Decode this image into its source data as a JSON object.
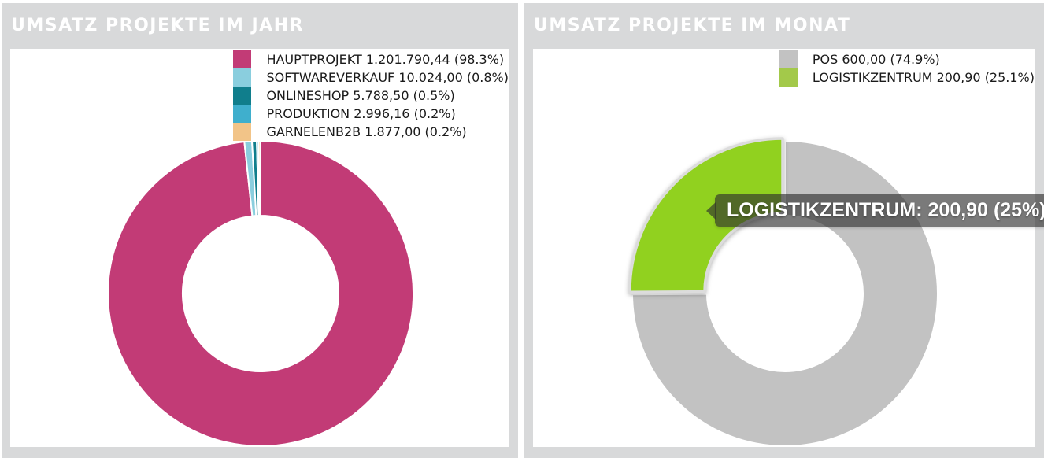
{
  "colors": {
    "panel_background": "#d8d9da",
    "chart_background": "#ffffff",
    "title_color": "#ffffff"
  },
  "tooltip": {
    "text": "LOGISTIKZENTRUM: 200,90 (25%)",
    "background": "rgba(44,44,44,0.63)",
    "text_color": "#ffffff"
  },
  "chart_data": [
    {
      "type": "pie",
      "donut": true,
      "title": "UMSATZ PROJEKTE IM JAHR",
      "inner_radius_ratio": 0.51,
      "start_angle_deg": 0,
      "direction": "clockwise",
      "legend_position": "top-right",
      "slices": [
        {
          "label": "HAUPTPROJEKT",
          "value": 1201790.44,
          "value_text": "1.201.790,44",
          "percent": 98.3,
          "legend": "HAUPTPROJEKT 1.201.790,44 (98.3%)",
          "color": "#c23b76"
        },
        {
          "label": "SOFTWAREVERKAUF",
          "value": 10024.0,
          "value_text": "10.024,00",
          "percent": 0.8,
          "legend": "SOFTWAREVERKAUF 10.024,00 (0.8%)",
          "color": "#8acede"
        },
        {
          "label": "ONLINESHOP",
          "value": 5788.5,
          "value_text": "5.788,50",
          "percent": 0.5,
          "legend": "ONLINESHOP 5.788,50 (0.5%)",
          "color": "#107e8c"
        },
        {
          "label": "PRODUKTION",
          "value": 2996.16,
          "value_text": "2.996,16",
          "percent": 0.2,
          "legend": "PRODUKTION 2.996,16 (0.2%)",
          "color": "#3fafcd"
        },
        {
          "label": "GARNELENB2B",
          "value": 1877.0,
          "value_text": "1.877,00",
          "percent": 0.2,
          "legend": "GARNELENB2B 1.877,00 (0.2%)",
          "color": "#f2c488"
        }
      ]
    },
    {
      "type": "pie",
      "donut": true,
      "title": "UMSATZ PROJEKTE IM MONAT",
      "inner_radius_ratio": 0.51,
      "start_angle_deg": 0,
      "direction": "clockwise",
      "legend_position": "top-right",
      "slices": [
        {
          "label": "POS",
          "value": 600.0,
          "value_text": "600,00",
          "percent": 74.9,
          "legend": "POS 600,00 (74.9%)",
          "color": "#c2c2c2"
        },
        {
          "label": "LOGISTIKZENTRUM",
          "value": 200.9,
          "value_text": "200,90",
          "percent": 25.1,
          "legend": "LOGISTIKZENTRUM 200,90 (25.1%)",
          "color": "#91d11f",
          "legend_color": "#a3c94a",
          "highlighted": true
        }
      ]
    }
  ]
}
